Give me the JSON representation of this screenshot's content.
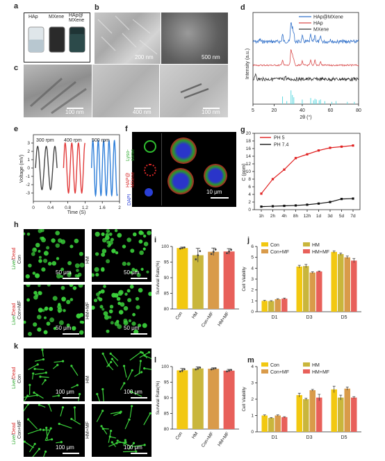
{
  "panels": {
    "a": "a",
    "b": "b",
    "c": "c",
    "d": "d",
    "e": "e",
    "f": "f",
    "g": "g",
    "h": "h",
    "i": "i",
    "j": "j",
    "k": "k",
    "l": "l",
    "m": "m"
  },
  "panel_a": {
    "vials": [
      "HAp",
      "MXene",
      "HAp@\nMXene"
    ]
  },
  "panel_b": {
    "scales": [
      "200 nm",
      "500 nm"
    ]
  },
  "panel_c": {
    "scales": [
      "100 nm",
      "400 nm",
      "100 nm"
    ]
  },
  "panel_f": {
    "channels": [
      "Lyso-\nsome",
      "HAP@\nMXene",
      "DAPI"
    ],
    "scale": "10 μm"
  },
  "panel_h": {
    "row_label": "Live/Dead",
    "live": "Live",
    "slash": "/",
    "dead": "Dead",
    "images": [
      {
        "label": "Con",
        "scale": "50 μm"
      },
      {
        "label": "HM",
        "scale": "50 μm"
      },
      {
        "label": "Con+MF",
        "scale": "50 μm"
      },
      {
        "label": "HM+MF",
        "scale": "50 μm"
      }
    ]
  },
  "panel_k": {
    "images": [
      {
        "label": "Con",
        "scale": "100 μm"
      },
      {
        "label": "HM",
        "scale": "100 μm"
      },
      {
        "label": "Con+MF",
        "scale": "100 μm"
      },
      {
        "label": "HM+MF",
        "scale": "100 μm"
      }
    ]
  },
  "colors": {
    "con": "#f2c811",
    "hm": "#c9b63c",
    "conmf": "#d99b4a",
    "hmmf": "#e8605a",
    "green": "#3bd13b",
    "blue_xrd": "#2f6fc9",
    "red_xrd": "#d94a4a",
    "cyan_ref": "#5fd9e0"
  },
  "chart_data": [
    {
      "id": "d",
      "type": "line",
      "xlabel": "2θ (°)",
      "ylabel": "Intensity (a.u.)",
      "xlim": [
        5,
        80
      ],
      "xticks": [
        5,
        20,
        40,
        60,
        80
      ],
      "legend": [
        "HAp@MXene",
        "HAp",
        "MXene"
      ],
      "legend_position": "top-right"
    },
    {
      "id": "e",
      "type": "line",
      "xlabel": "Time (S)",
      "ylabel": "Voltage (mV)",
      "xlim": [
        0,
        2.0
      ],
      "ylim": [
        -4,
        4
      ],
      "xticks": [
        0,
        0.4,
        0.8,
        1.2,
        1.6,
        2.0
      ],
      "yticks": [
        -3,
        -2,
        -1,
        0,
        1,
        2,
        3
      ],
      "annotations": [
        "300 rpm",
        "400 rpm",
        "500 rpm"
      ]
    },
    {
      "id": "g",
      "type": "line",
      "xlabel": "",
      "ylabel": "C (ppm)",
      "categories": [
        "1h",
        "2h",
        "4h",
        "8h",
        "12h",
        "1d",
        "3d",
        "5d",
        "7d"
      ],
      "ylim": [
        0,
        20
      ],
      "yticks": [
        0,
        2,
        4,
        6,
        8,
        10,
        12,
        14,
        16,
        18,
        20
      ],
      "legend_position": "top-left",
      "series": [
        {
          "name": "PH 5",
          "values": [
            4.2,
            8.0,
            10.5,
            13.5,
            14.5,
            15.5,
            16.2,
            16.5,
            16.8
          ]
        },
        {
          "name": "PH 7.4",
          "values": [
            0.8,
            0.9,
            1.0,
            1.1,
            1.3,
            1.6,
            2.0,
            2.8,
            2.9
          ]
        }
      ]
    },
    {
      "id": "i",
      "type": "bar",
      "categories": [
        "Con",
        "HM",
        "Con+MF",
        "HM+MF"
      ],
      "values": [
        99.5,
        97.2,
        98.3,
        98.4
      ],
      "errors": [
        0.3,
        2.2,
        1.2,
        0.9
      ],
      "ylabel": "Survival Rate(%)",
      "ylim": [
        80,
        100
      ],
      "yticks": [
        80,
        85,
        90,
        95,
        100
      ]
    },
    {
      "id": "j",
      "type": "bar",
      "categories": [
        "D1",
        "D3",
        "D5"
      ],
      "ylabel": "Cell Viability",
      "ylim": [
        0,
        6
      ],
      "yticks": [
        0,
        1,
        2,
        3,
        4,
        5,
        6
      ],
      "legend_position": "top-left",
      "series": [
        {
          "name": "Con",
          "values": [
            1.0,
            4.15,
            5.5
          ],
          "errors": [
            0.05,
            0.12,
            0.1
          ]
        },
        {
          "name": "HM",
          "values": [
            0.98,
            4.2,
            5.3
          ],
          "errors": [
            0.04,
            0.15,
            0.1
          ]
        },
        {
          "name": "Con+MF",
          "values": [
            1.15,
            3.6,
            5.0
          ],
          "errors": [
            0.05,
            0.08,
            0.12
          ]
        },
        {
          "name": "HM+MF",
          "values": [
            1.2,
            3.7,
            4.7
          ],
          "errors": [
            0.06,
            0.05,
            0.2
          ]
        }
      ]
    },
    {
      "id": "l",
      "type": "bar",
      "categories": [
        "Con",
        "HM",
        "Con+MF",
        "HM+MF"
      ],
      "values": [
        98.8,
        99.4,
        99.3,
        98.7
      ],
      "errors": [
        0.6,
        0.5,
        0.3,
        0.4
      ],
      "ylabel": "Survival Rate(%)",
      "ylim": [
        80,
        100
      ],
      "yticks": [
        80,
        85,
        90,
        95,
        100
      ]
    },
    {
      "id": "m",
      "type": "bar",
      "categories": [
        "D1",
        "D3",
        "D5"
      ],
      "ylabel": "Cell Viability",
      "ylim": [
        0,
        4
      ],
      "yticks": [
        0,
        1,
        2,
        3,
        4
      ],
      "legend_position": "top-left",
      "series": [
        {
          "name": "Con",
          "values": [
            1.0,
            2.25,
            2.6
          ],
          "errors": [
            0.04,
            0.12,
            0.2
          ]
        },
        {
          "name": "HM",
          "values": [
            0.85,
            2.0,
            2.1
          ],
          "errors": [
            0.03,
            0.06,
            0.15
          ]
        },
        {
          "name": "Con+MF",
          "values": [
            1.0,
            2.55,
            2.65
          ],
          "errors": [
            0.04,
            0.05,
            0.1
          ]
        },
        {
          "name": "HM+MF",
          "values": [
            0.9,
            2.1,
            2.1
          ],
          "errors": [
            0.03,
            0.2,
            0.06
          ]
        }
      ]
    }
  ]
}
